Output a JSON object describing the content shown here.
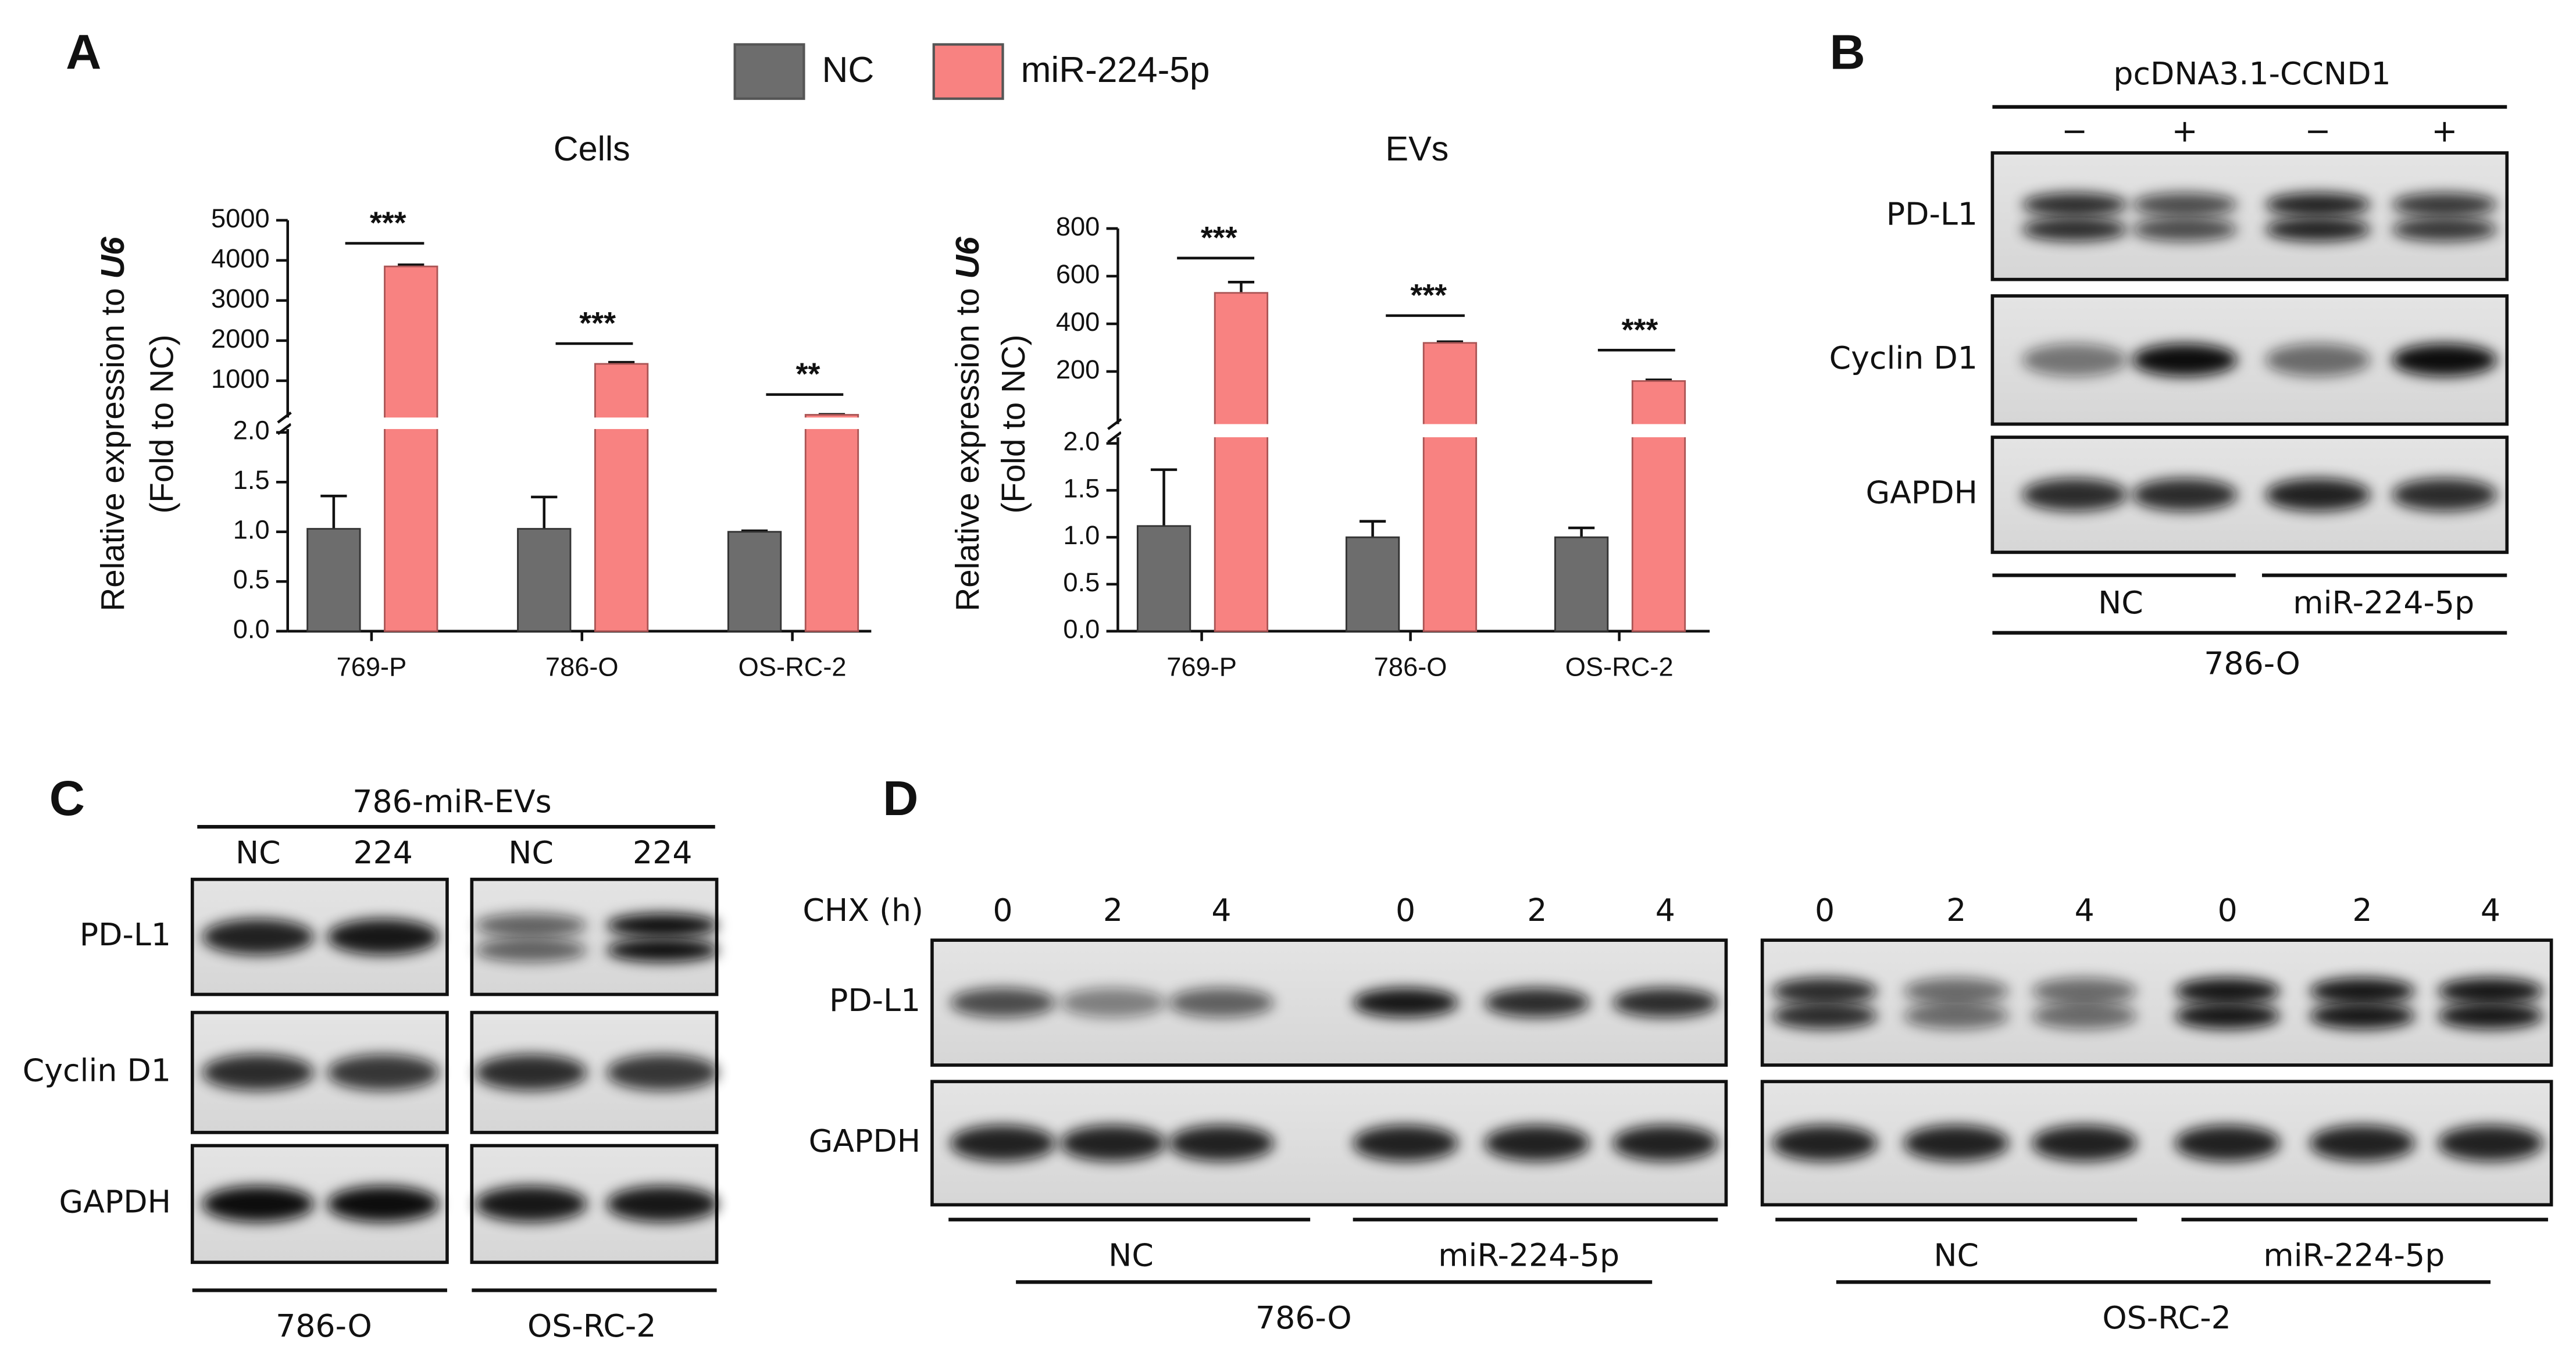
{
  "panel_labels": [
    "A",
    "B",
    "C",
    "D"
  ],
  "chart_data": [
    {
      "type": "bar",
      "title": "Cells",
      "y_label": "Relative expression to ",
      "y_label_gene": "U6",
      "y_label_2": "(Fold to NC)",
      "categories": [
        "769-P",
        "786-O",
        "OS-RC-2"
      ],
      "series": [
        {
          "name": "NC",
          "color": "#6d6d6d",
          "values": [
            1.03,
            1.03,
            1.0
          ],
          "errors": [
            0.33,
            0.32,
            0.01
          ]
        },
        {
          "name": "miR-224-5p",
          "color": "#f88281",
          "values": [
            3850,
            1420,
            150
          ],
          "errors": [
            40,
            40,
            10
          ]
        }
      ],
      "ylim": [
        0,
        2.1
      ],
      "yticks": [
        {
          "value": 0,
          "label": "0.0"
        },
        0.5,
        {
          "value": 1,
          "label": "1.0"
        },
        1.5,
        {
          "value": 2,
          "label": "2.0"
        }
      ],
      "ylim_upper": [
        0,
        5000
      ],
      "yticks_upper": [
        1000,
        2000,
        3000,
        4000,
        5000
      ],
      "significance": [
        "***",
        "***",
        "**"
      ]
    },
    {
      "type": "bar",
      "title": "EVs",
      "y_label": "Relative expression to ",
      "y_label_gene": "U6",
      "y_label_2": "(Fold to NC)",
      "categories": [
        "769-P",
        "786-O",
        "OS-RC-2"
      ],
      "series": [
        {
          "color": "#6d6d6d",
          "values": [
            1.12,
            1.0,
            1.0
          ],
          "errors": [
            0.6,
            0.17,
            0.1
          ]
        },
        {
          "color": "#f88281",
          "values": [
            530,
            320,
            160
          ],
          "errors": [
            45,
            5,
            5
          ]
        }
      ],
      "ylim": [
        0,
        2.1
      ],
      "yticks": [
        {
          "value": 0,
          "label": "0.0"
        },
        0.5,
        {
          "value": 1,
          "label": "1.0"
        },
        1.5,
        {
          "value": 2,
          "label": "2.0"
        }
      ],
      "ylim_upper": [
        0,
        800
      ],
      "yticks_upper": [
        200,
        400,
        600,
        800
      ],
      "significance": [
        "***",
        "***",
        "***"
      ]
    }
  ],
  "blot_b": {
    "treatment": "pcDNA3.1-CCND1",
    "lanes": [
      "−",
      "+",
      "−",
      "+"
    ],
    "proteins": [
      "PD-L1",
      "Cyclin D1",
      "GAPDH"
    ],
    "groups": [
      "NC",
      "miR-224-5p"
    ],
    "cell_line": "786-O"
  },
  "blot_c": {
    "treatment": "786-miR-EVs",
    "lanes": [
      "NC",
      "224",
      "NC",
      "224"
    ],
    "proteins": [
      "PD-L1",
      "Cyclin D1",
      "GAPDH"
    ],
    "cell_lines": [
      "786-O",
      "OS-RC-2"
    ]
  },
  "blot_d": {
    "treatment": "CHX (h)",
    "lanes": [
      "0",
      "2",
      "4",
      "0",
      "2",
      "4",
      "0",
      "2",
      "4",
      "0",
      "2",
      "4"
    ],
    "proteins": [
      "PD-L1",
      "GAPDH"
    ],
    "groups": [
      "NC",
      "miR-224-5p",
      "NC",
      "miR-224-5p"
    ],
    "cell_lines": [
      "786-O",
      "OS-RC-2"
    ]
  }
}
